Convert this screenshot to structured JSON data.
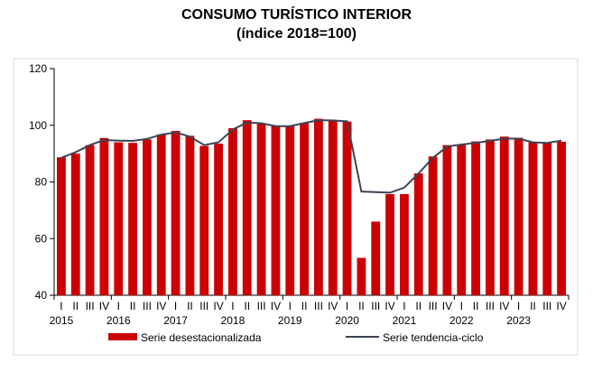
{
  "chart_data": {
    "type": "bar",
    "title": "CONSUMO TURÍSTICO INTERIOR",
    "subtitle": "(índice 2018=100)",
    "quarters": [
      "I",
      "II",
      "III",
      "IV"
    ],
    "years": [
      "2015",
      "2016",
      "2017",
      "2018",
      "2019",
      "2020",
      "2021",
      "2022",
      "2023"
    ],
    "ylim": [
      40,
      120
    ],
    "yticks": [
      40,
      60,
      80,
      100,
      120
    ],
    "grid": false,
    "legend_position": "bottom",
    "series": [
      {
        "name": "Serie desestacionalizada",
        "type": "bar",
        "color": "#CC0000",
        "values": [
          88.7,
          90.0,
          93.0,
          95.5,
          94.0,
          93.8,
          95.0,
          96.8,
          98.0,
          96.3,
          92.7,
          93.5,
          99.0,
          101.8,
          100.6,
          99.6,
          99.8,
          100.8,
          102.3,
          101.6,
          101.3,
          53.2,
          66.0,
          75.7,
          75.7,
          83.0,
          89.0,
          93.0,
          93.2,
          94.3,
          95.0,
          96.0,
          95.6,
          94.0,
          94.0,
          94.2
        ]
      },
      {
        "name": "Serie tendencia-ciclo",
        "type": "line",
        "color": "#3B4556",
        "values": [
          88.5,
          90.5,
          93.0,
          94.8,
          94.6,
          94.5,
          95.2,
          96.7,
          97.5,
          96.0,
          93.0,
          94.0,
          98.5,
          101.0,
          100.7,
          99.7,
          99.7,
          100.8,
          101.8,
          101.7,
          101.4,
          76.6,
          76.4,
          76.2,
          78.0,
          83.0,
          88.5,
          92.5,
          93.2,
          93.8,
          94.5,
          95.3,
          95.3,
          94.0,
          93.8,
          94.6
        ]
      }
    ]
  }
}
